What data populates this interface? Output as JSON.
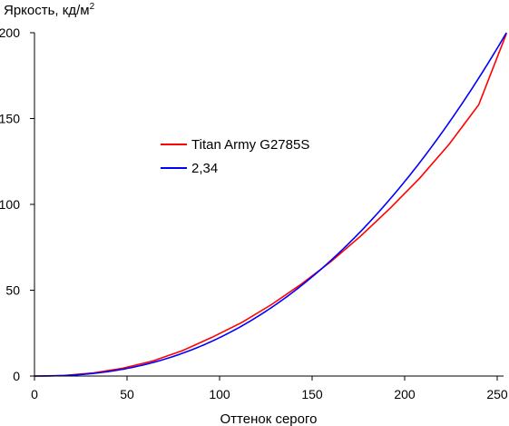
{
  "chart_data": {
    "type": "line",
    "title": "",
    "ylabel": "Яркость, кд/м",
    "ylabel_superscript": "2",
    "xlabel": "Оттенок серого",
    "xlim": [
      0,
      255
    ],
    "ylim": [
      0,
      200
    ],
    "x_ticks": [
      0,
      50,
      100,
      150,
      200,
      250
    ],
    "y_ticks": [
      0,
      50,
      100,
      150,
      200
    ],
    "grid": false,
    "legend_position": "center-left",
    "series": [
      {
        "name": "Titan Army G2785S",
        "color": "#ff0000",
        "x": [
          0,
          16,
          32,
          48,
          64,
          80,
          96,
          112,
          128,
          144,
          160,
          176,
          192,
          208,
          224,
          240,
          255
        ],
        "y": [
          0,
          0.3,
          1.8,
          4.6,
          8.8,
          14.8,
          22.6,
          31.2,
          41.6,
          53.4,
          66.5,
          81.3,
          97.6,
          115.1,
          135.0,
          158.0,
          199.5
        ]
      },
      {
        "name": "2,34",
        "color": "#0000ff",
        "gamma": 2.34,
        "x": [
          0,
          16,
          32,
          48,
          64,
          80,
          96,
          112,
          128,
          144,
          160,
          176,
          192,
          208,
          224,
          240,
          255
        ],
        "y": [
          0,
          0.3,
          1.6,
          4.0,
          7.9,
          13.2,
          20.2,
          28.9,
          39.7,
          52.3,
          66.8,
          83.4,
          102.1,
          122.9,
          146.1,
          171.6,
          198.3
        ]
      }
    ]
  }
}
